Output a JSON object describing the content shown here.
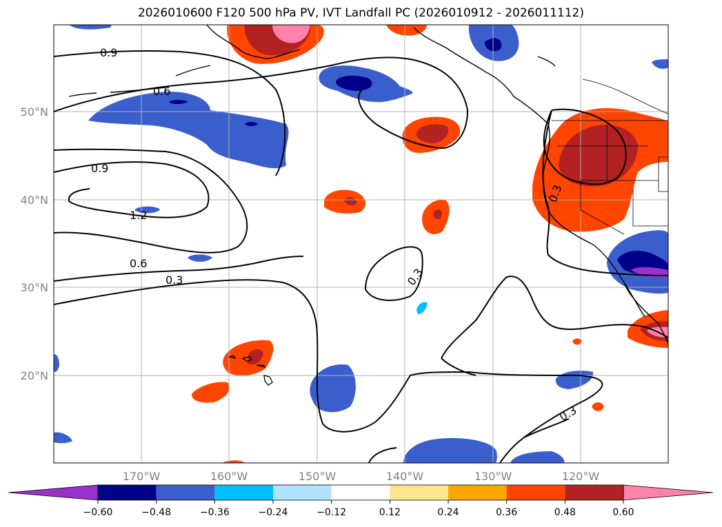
{
  "title": "2026010600 F120 500 hPa PV, IVT Landfall PC (2026010912 - 2026011112)",
  "lat_labels": [
    "50°N",
    "40°N",
    "30°N",
    "20°N"
  ],
  "lon_labels": [
    "170°W",
    "160°W",
    "150°W",
    "140°W",
    "130°W",
    "120°W"
  ],
  "contour_labels": [
    "0.9",
    "0.6",
    "0.9",
    "1.2",
    "0.6",
    "0.3",
    "0.3",
    "0.3",
    "0.3"
  ],
  "colorbar": {
    "ticks": [
      "−0.60",
      "−0.48",
      "−0.36",
      "−0.24",
      "−0.12",
      "0.12",
      "0.24",
      "0.36",
      "0.48",
      "0.60"
    ],
    "colors": [
      "#9932cc",
      "#00008b",
      "#3a5fcd",
      "#00bfff",
      "#b0e2ff",
      "#ffffff",
      "#fde58d",
      "#ffa500",
      "#ff4500",
      "#b22222",
      "#ff82ab"
    ]
  }
}
